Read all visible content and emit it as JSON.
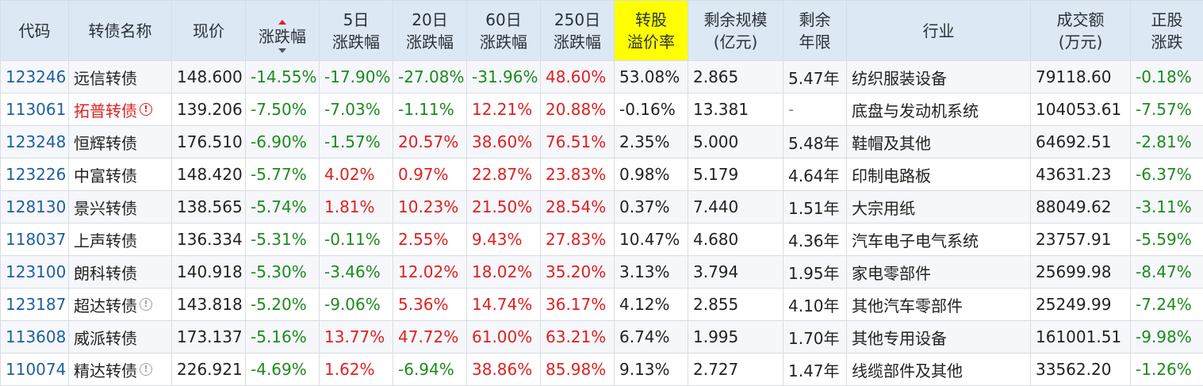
{
  "headers": {
    "code": "代码",
    "name": "转债名称",
    "price": "现价",
    "chg": "涨跌幅",
    "chg5_l1": "5日",
    "chg5_l2": "涨跌幅",
    "chg20_l1": "20日",
    "chg20_l2": "涨跌幅",
    "chg60_l1": "60日",
    "chg60_l2": "涨跌幅",
    "chg250_l1": "250日",
    "chg250_l2": "涨跌幅",
    "premium_l1": "转股",
    "premium_l2": "溢价率",
    "scale_l1": "剩余规模",
    "scale_l2": "(亿元)",
    "years_l1": "剩余",
    "years_l2": "年限",
    "industry": "行业",
    "volume_l1": "成交额",
    "volume_l2": "(万元)",
    "stock_l1": "正股",
    "stock_l2": "涨跌"
  },
  "colors": {
    "up": "#e02020",
    "down": "#1e8a1e",
    "code": "#1f5f9f",
    "header_bg": "#dce8f4",
    "highlight": "#ffff00"
  },
  "rows": [
    {
      "code": "123246",
      "name": "远信转债",
      "name_red": false,
      "warn": "",
      "price": "148.600",
      "chg": "-14.55%",
      "chg5": "-17.90%",
      "chg20": "-27.08%",
      "chg60": "-31.96%",
      "chg250": "48.60%",
      "premium": "53.08%",
      "scale": "2.865",
      "years": "5.47年",
      "industry": "纺织服装设备",
      "volume": "79118.60",
      "stock": "-0.18%"
    },
    {
      "code": "113061",
      "name": "拓普转债",
      "name_red": true,
      "warn": "red",
      "price": "139.206",
      "chg": "-7.50%",
      "chg5": "-7.03%",
      "chg20": "-1.11%",
      "chg60": "12.21%",
      "chg250": "20.88%",
      "premium": "-0.16%",
      "scale": "13.381",
      "years": "-",
      "industry": "底盘与发动机系统",
      "volume": "104053.61",
      "stock": "-7.57%"
    },
    {
      "code": "123248",
      "name": "恒辉转债",
      "name_red": false,
      "warn": "",
      "price": "176.510",
      "chg": "-6.90%",
      "chg5": "-1.57%",
      "chg20": "20.57%",
      "chg60": "38.60%",
      "chg250": "76.51%",
      "premium": "2.35%",
      "scale": "5.000",
      "years": "5.48年",
      "industry": "鞋帽及其他",
      "volume": "64692.51",
      "stock": "-2.81%"
    },
    {
      "code": "123226",
      "name": "中富转债",
      "name_red": false,
      "warn": "",
      "price": "148.420",
      "chg": "-5.77%",
      "chg5": "4.02%",
      "chg20": "0.97%",
      "chg60": "22.87%",
      "chg250": "23.83%",
      "premium": "0.98%",
      "scale": "5.179",
      "years": "4.64年",
      "industry": "印制电路板",
      "volume": "43631.23",
      "stock": "-6.37%"
    },
    {
      "code": "128130",
      "name": "景兴转债",
      "name_red": false,
      "warn": "",
      "price": "138.565",
      "chg": "-5.74%",
      "chg5": "1.81%",
      "chg20": "10.23%",
      "chg60": "21.50%",
      "chg250": "28.54%",
      "premium": "0.37%",
      "scale": "7.440",
      "years": "1.51年",
      "industry": "大宗用纸",
      "volume": "88049.62",
      "stock": "-3.11%"
    },
    {
      "code": "118037",
      "name": "上声转债",
      "name_red": false,
      "warn": "",
      "price": "136.334",
      "chg": "-5.31%",
      "chg5": "-0.11%",
      "chg20": "2.55%",
      "chg60": "9.43%",
      "chg250": "27.83%",
      "premium": "10.47%",
      "scale": "4.680",
      "years": "4.36年",
      "industry": "汽车电子电气系统",
      "volume": "23757.91",
      "stock": "-5.59%"
    },
    {
      "code": "123100",
      "name": "朗科转债",
      "name_red": false,
      "warn": "",
      "price": "140.918",
      "chg": "-5.30%",
      "chg5": "-3.46%",
      "chg20": "12.02%",
      "chg60": "18.02%",
      "chg250": "35.20%",
      "premium": "3.13%",
      "scale": "3.794",
      "years": "1.95年",
      "industry": "家电零部件",
      "volume": "25699.98",
      "stock": "-8.47%"
    },
    {
      "code": "123187",
      "name": "超达转债",
      "name_red": false,
      "warn": "gray",
      "price": "143.818",
      "chg": "-5.20%",
      "chg5": "-9.06%",
      "chg20": "5.36%",
      "chg60": "14.74%",
      "chg250": "36.17%",
      "premium": "4.12%",
      "scale": "2.855",
      "years": "4.10年",
      "industry": "其他汽车零部件",
      "volume": "25249.99",
      "stock": "-7.24%"
    },
    {
      "code": "113608",
      "name": "威派转债",
      "name_red": false,
      "warn": "",
      "price": "173.137",
      "chg": "-5.16%",
      "chg5": "13.77%",
      "chg20": "47.72%",
      "chg60": "61.00%",
      "chg250": "63.21%",
      "premium": "6.74%",
      "scale": "1.995",
      "years": "1.70年",
      "industry": "其他专用设备",
      "volume": "161001.51",
      "stock": "-9.98%"
    },
    {
      "code": "110074",
      "name": "精达转债",
      "name_red": false,
      "warn": "gray",
      "price": "226.921",
      "chg": "-4.69%",
      "chg5": "1.62%",
      "chg20": "-6.94%",
      "chg60": "38.86%",
      "chg250": "85.98%",
      "premium": "9.13%",
      "scale": "2.727",
      "years": "1.47年",
      "industry": "线缆部件及其他",
      "volume": "33562.20",
      "stock": "-1.26%"
    }
  ]
}
